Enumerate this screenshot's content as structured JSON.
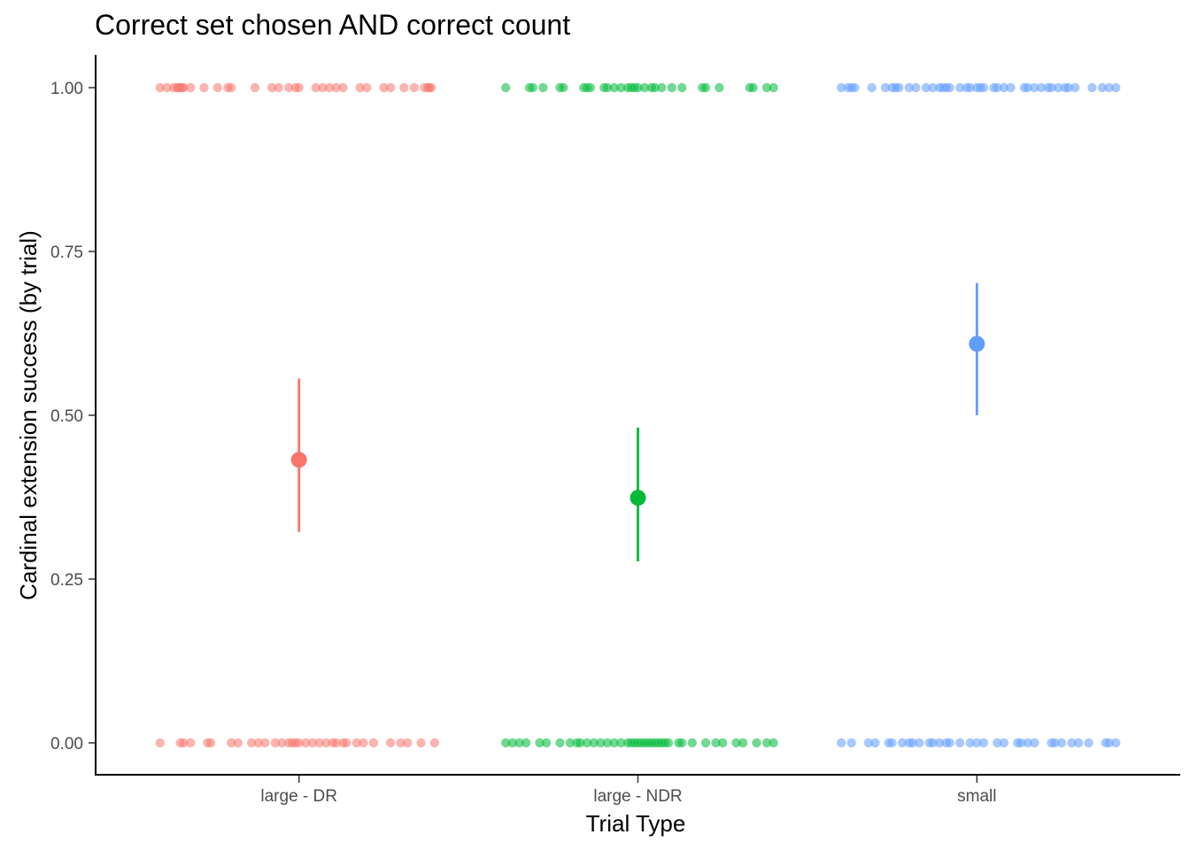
{
  "chart_data": {
    "type": "scatter",
    "title": "Correct set chosen AND correct count",
    "xlabel": "Trial Type",
    "ylabel": "Cardinal extension success (by trial)",
    "categories": [
      "large - DR",
      "large - NDR",
      "small"
    ],
    "ylim": [
      -0.05,
      1.05
    ],
    "yticks": [
      0.0,
      0.25,
      0.5,
      0.75,
      1.0
    ],
    "ytick_labels": [
      "0.00",
      "0.25",
      "0.50",
      "0.75",
      "1.00"
    ],
    "grid": false,
    "legend": "none",
    "series": [
      {
        "category": "large - DR",
        "color": "#F8766D",
        "mean": 0.432,
        "ci": [
          0.322,
          0.556
        ],
        "jitter_one": [
          -0.41,
          -0.39,
          -0.37,
          -0.36,
          -0.355,
          -0.35,
          -0.345,
          -0.34,
          -0.32,
          -0.28,
          -0.24,
          -0.21,
          -0.2,
          -0.13,
          -0.08,
          -0.06,
          -0.03,
          -0.01,
          0.0,
          0.05,
          0.07,
          0.09,
          0.11,
          0.13,
          0.18,
          0.2,
          0.25,
          0.27,
          0.31,
          0.34,
          0.37,
          0.38,
          0.385,
          0.39
        ],
        "jitter_zero": [
          -0.41,
          -0.35,
          -0.34,
          -0.32,
          -0.27,
          -0.26,
          -0.2,
          -0.18,
          -0.14,
          -0.12,
          -0.1,
          -0.07,
          -0.05,
          -0.03,
          -0.02,
          -0.01,
          0.0,
          0.02,
          0.04,
          0.06,
          0.08,
          0.1,
          0.11,
          0.13,
          0.14,
          0.17,
          0.19,
          0.22,
          0.27,
          0.3,
          0.32,
          0.36,
          0.4
        ]
      },
      {
        "category": "large - NDR",
        "color": "#00BA38",
        "mean": 0.374,
        "ci": [
          0.277,
          0.481
        ],
        "jitter_one": [
          -0.39,
          -0.32,
          -0.31,
          -0.28,
          -0.23,
          -0.22,
          -0.16,
          -0.15,
          -0.14,
          -0.1,
          -0.09,
          -0.07,
          -0.05,
          -0.03,
          -0.02,
          -0.01,
          0.0,
          0.02,
          0.04,
          0.05,
          0.07,
          0.1,
          0.13,
          0.19,
          0.2,
          0.24,
          0.33,
          0.34,
          0.38,
          0.4
        ],
        "jitter_zero": [
          -0.39,
          -0.37,
          -0.35,
          -0.33,
          -0.29,
          -0.27,
          -0.23,
          -0.2,
          -0.18,
          -0.17,
          -0.15,
          -0.13,
          -0.11,
          -0.09,
          -0.07,
          -0.05,
          -0.03,
          -0.02,
          -0.01,
          0.0,
          0.01,
          0.02,
          0.03,
          0.04,
          0.05,
          0.06,
          0.07,
          0.08,
          0.09,
          0.12,
          0.13,
          0.16,
          0.2,
          0.23,
          0.25,
          0.29,
          0.31,
          0.35,
          0.38,
          0.4
        ]
      },
      {
        "category": "small",
        "color": "#619CFF",
        "mean": 0.609,
        "ci": [
          0.5,
          0.702
        ],
        "jitter_one": [
          -0.4,
          -0.38,
          -0.37,
          -0.36,
          -0.31,
          -0.27,
          -0.25,
          -0.24,
          -0.23,
          -0.2,
          -0.18,
          -0.15,
          -0.13,
          -0.11,
          -0.1,
          -0.09,
          -0.08,
          -0.05,
          -0.03,
          -0.02,
          0.0,
          0.01,
          0.02,
          0.05,
          0.06,
          0.08,
          0.1,
          0.14,
          0.15,
          0.17,
          0.19,
          0.21,
          0.22,
          0.24,
          0.26,
          0.27,
          0.29,
          0.34,
          0.37,
          0.39,
          0.41
        ],
        "jitter_zero": [
          -0.4,
          -0.37,
          -0.32,
          -0.3,
          -0.26,
          -0.25,
          -0.22,
          -0.2,
          -0.19,
          -0.17,
          -0.14,
          -0.13,
          -0.11,
          -0.09,
          -0.08,
          -0.05,
          -0.02,
          0.0,
          0.02,
          0.06,
          0.08,
          0.12,
          0.13,
          0.15,
          0.17,
          0.22,
          0.23,
          0.25,
          0.28,
          0.3,
          0.33,
          0.38,
          0.39,
          0.41
        ]
      }
    ]
  }
}
